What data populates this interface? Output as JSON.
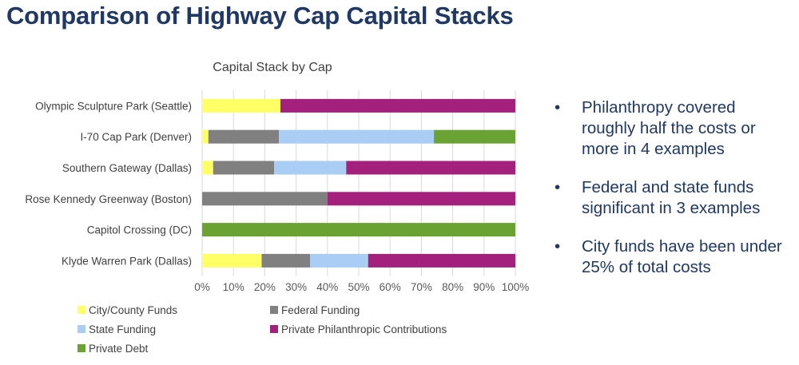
{
  "page": {
    "title": "Comparison of Highway Cap Capital Stacks"
  },
  "bullets": [
    "Philanthropy covered roughly half the costs or more in 4 examples",
    "Federal and state funds significant in 3 examples",
    "City funds have been under 25% of total costs"
  ],
  "chart_data": {
    "type": "bar",
    "orientation": "horizontal",
    "stacked": "percent",
    "title": "Capital Stack by Cap",
    "xlabel": "",
    "ylabel": "",
    "xlim": [
      0,
      100
    ],
    "x_ticks": [
      "0%",
      "10%",
      "20%",
      "30%",
      "40%",
      "50%",
      "60%",
      "70%",
      "80%",
      "90%",
      "100%"
    ],
    "grid": true,
    "legend_position": "bottom",
    "categories": [
      "Olympic Sculpture Park (Seattle)",
      "I-70 Cap Park (Denver)",
      "Southern Gateway (Dallas)",
      "Rose Kennedy Greenway (Boston)",
      "Capitol Crossing (DC)",
      "Klyde Warren Park (Dallas)"
    ],
    "series": [
      {
        "name": "City/County Funds",
        "color": "#ffff66",
        "values": [
          25,
          2,
          3.5,
          0,
          0,
          19
        ]
      },
      {
        "name": "Federal Funding",
        "color": "#808080",
        "values": [
          0,
          22.5,
          19.5,
          40,
          0,
          15.5
        ]
      },
      {
        "name": "State Funding",
        "color": "#a9cdf5",
        "values": [
          0,
          49.5,
          23,
          0,
          0,
          18.5
        ]
      },
      {
        "name": "Private Philanthropic Contributions",
        "color": "#a3217d",
        "values": [
          75,
          0,
          54,
          60,
          0,
          47
        ]
      },
      {
        "name": "Private Debt",
        "color": "#6ba234",
        "values": [
          0,
          26,
          0,
          0,
          100,
          0
        ]
      }
    ]
  }
}
